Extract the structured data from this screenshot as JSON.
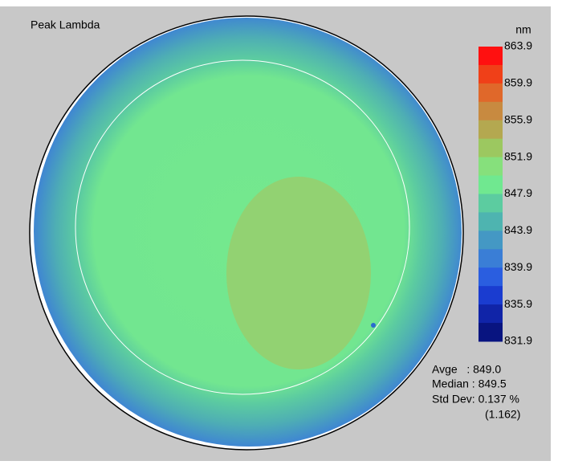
{
  "title": "Peak Lambda",
  "scale": {
    "unit": "nm",
    "labels": [
      "863.9",
      "859.9",
      "855.9",
      "851.9",
      "847.9",
      "843.9",
      "839.9",
      "835.9",
      "831.9"
    ]
  },
  "stats": {
    "lines": [
      "Avge   : 849.0",
      "Median : 849.5",
      "Std Dev: 0.137 %",
      "(1.162)"
    ]
  }
}
